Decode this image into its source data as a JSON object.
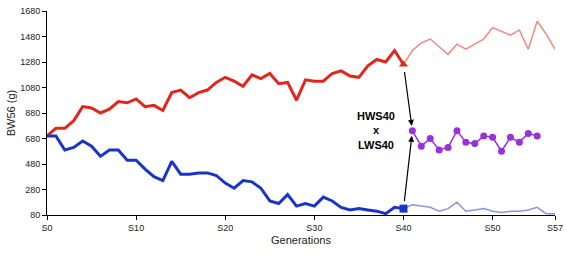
{
  "chart_data": {
    "type": "line",
    "x_label": "Generations",
    "y_label": "BW56 (g)",
    "xlim": [
      0,
      57
    ],
    "xticks": [
      {
        "value": 0,
        "label": "S0"
      },
      {
        "value": 10,
        "label": "S10"
      },
      {
        "value": 20,
        "label": "S20"
      },
      {
        "value": 30,
        "label": "S30"
      },
      {
        "value": 40,
        "label": "S40"
      },
      {
        "value": 50,
        "label": "S50"
      },
      {
        "value": 57,
        "label": "S57"
      }
    ],
    "ylim": [
      80,
      1680
    ],
    "yticks": [
      80,
      280,
      480,
      680,
      880,
      1080,
      1280,
      1480,
      1680
    ],
    "grid": false,
    "series": [
      {
        "color": "#e3261c",
        "line_style": "thick",
        "x": [
          0,
          1,
          2,
          3,
          4,
          5,
          6,
          7,
          8,
          9,
          10,
          11,
          12,
          13,
          14,
          15,
          16,
          17,
          18,
          19,
          20,
          21,
          22,
          23,
          24,
          25,
          26,
          27,
          28,
          29,
          30,
          31,
          32,
          33,
          34,
          35,
          36,
          37,
          38,
          39,
          40
        ],
        "values": [
          700,
          760,
          760,
          820,
          930,
          920,
          880,
          910,
          970,
          960,
          990,
          930,
          940,
          900,
          1040,
          1060,
          1000,
          1040,
          1060,
          1120,
          1160,
          1130,
          1090,
          1180,
          1150,
          1190,
          1110,
          1120,
          980,
          1140,
          1130,
          1130,
          1190,
          1210,
          1170,
          1160,
          1250,
          1300,
          1280,
          1370,
          1260
        ]
      },
      {
        "color": "#f08a84",
        "line_style": "thin",
        "x": [
          40,
          41,
          42,
          43,
          44,
          45,
          46,
          47,
          48,
          49,
          50,
          51,
          52,
          53,
          54,
          55,
          56,
          57
        ],
        "values": [
          1260,
          1370,
          1430,
          1460,
          1400,
          1340,
          1420,
          1380,
          1420,
          1460,
          1550,
          1520,
          1490,
          1530,
          1380,
          1600,
          1500,
          1380
        ]
      },
      {
        "color": "#e3261c",
        "marker": "triangle-up",
        "x": [
          40
        ],
        "values": [
          1260
        ]
      },
      {
        "color": "#1b34c8",
        "line_style": "thick",
        "x": [
          0,
          1,
          2,
          3,
          4,
          5,
          6,
          7,
          8,
          9,
          10,
          11,
          12,
          13,
          14,
          15,
          16,
          17,
          18,
          19,
          20,
          21,
          22,
          23,
          24,
          25,
          26,
          27,
          28,
          29,
          30,
          31,
          32,
          33,
          34,
          35,
          36,
          37,
          38,
          39,
          40
        ],
        "values": [
          700,
          700,
          590,
          610,
          660,
          620,
          540,
          590,
          590,
          510,
          510,
          440,
          380,
          350,
          500,
          400,
          400,
          410,
          410,
          390,
          330,
          290,
          350,
          340,
          290,
          190,
          170,
          240,
          150,
          170,
          150,
          220,
          190,
          140,
          120,
          130,
          120,
          110,
          90,
          140,
          130
        ]
      },
      {
        "color": "#8a95e0",
        "line_style": "thin",
        "x": [
          40,
          41,
          42,
          43,
          44,
          45,
          46,
          47,
          48,
          49,
          50,
          51,
          52,
          53,
          54,
          55,
          56,
          57
        ],
        "values": [
          130,
          160,
          150,
          140,
          110,
          130,
          180,
          110,
          120,
          130,
          110,
          100,
          110,
          110,
          120,
          140,
          90,
          90
        ]
      },
      {
        "color": "#1b34c8",
        "marker": "square",
        "x": [
          40
        ],
        "values": [
          130
        ]
      },
      {
        "color": "#9b30d9",
        "marker": "circle",
        "line_style": "thin",
        "x": [
          41,
          42,
          43,
          44,
          45,
          46,
          47,
          48,
          49,
          50,
          51,
          52,
          53,
          54,
          55
        ],
        "values": [
          740,
          620,
          680,
          590,
          610,
          740,
          650,
          640,
          700,
          690,
          580,
          690,
          650,
          720,
          700
        ]
      }
    ],
    "annotations": [
      {
        "text": [
          "HWS40",
          "x",
          "LWS40"
        ]
      }
    ]
  }
}
